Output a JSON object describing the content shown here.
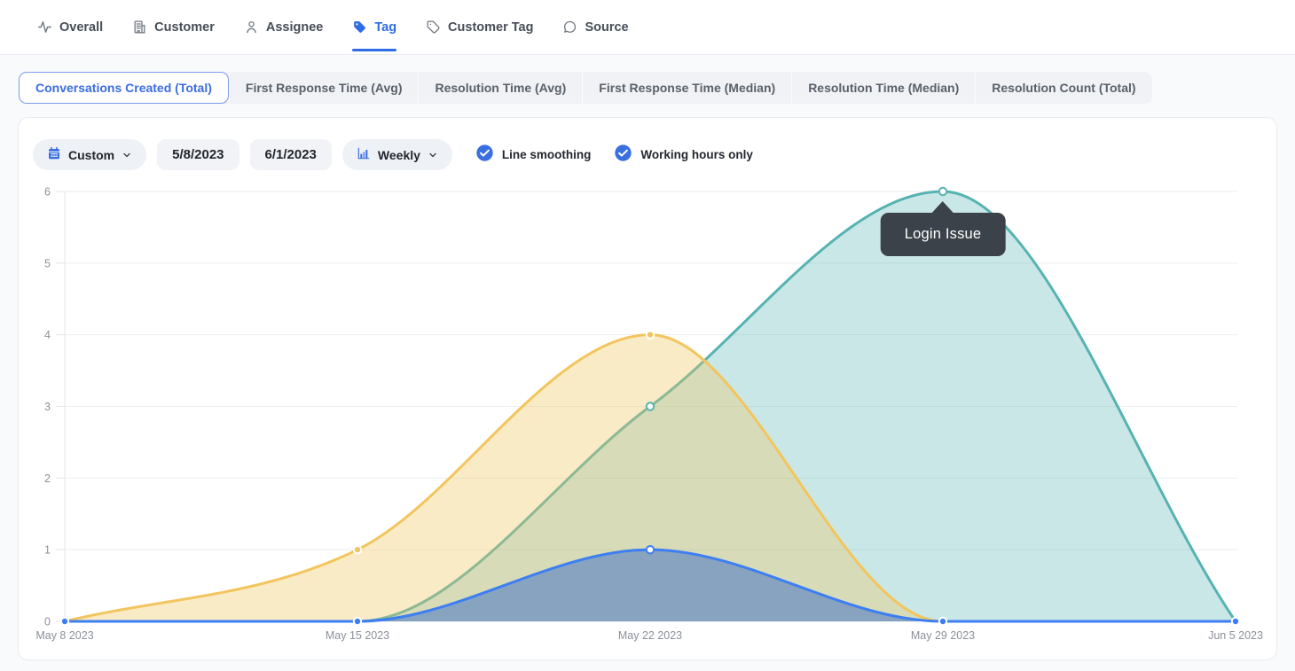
{
  "nav": {
    "items": [
      {
        "label": "Overall",
        "icon": "activity-icon"
      },
      {
        "label": "Customer",
        "icon": "building-icon"
      },
      {
        "label": "Assignee",
        "icon": "person-icon"
      },
      {
        "label": "Tag",
        "icon": "tag-icon"
      },
      {
        "label": "Customer Tag",
        "icon": "tag-outline-icon"
      },
      {
        "label": "Source",
        "icon": "chat-bubble-icon"
      }
    ],
    "active_index": 3
  },
  "metric_tabs": {
    "items": [
      {
        "label": "Conversations Created (Total)"
      },
      {
        "label": "First Response Time (Avg)"
      },
      {
        "label": "Resolution Time (Avg)"
      },
      {
        "label": "First Response Time (Median)"
      },
      {
        "label": "Resolution Time (Median)"
      },
      {
        "label": "Resolution Count (Total)"
      }
    ],
    "active_index": 0
  },
  "controls": {
    "range_preset": "Custom",
    "date_from": "5/8/2023",
    "date_to": "6/1/2023",
    "granularity": "Weekly",
    "toggles": [
      {
        "label": "Line smoothing",
        "checked": true
      },
      {
        "label": "Working hours only",
        "checked": true
      }
    ]
  },
  "colors": {
    "accent": "#2e6be6",
    "active_tab_border": "#7b9ce8",
    "tooltip_bg": "#3c424a",
    "grid": "#eceef1",
    "axis_line": "#e2e5e9",
    "axis_text": "#8b9099"
  },
  "chart_data": {
    "type": "area",
    "title": "",
    "smoothing": true,
    "grid": true,
    "legend_position": "none",
    "x_labels": [
      "May 8 2023",
      "May 15 2023",
      "May 22 2023",
      "May 29 2023",
      "Jun 5 2023"
    ],
    "y_ticks": [
      0,
      1,
      2,
      3,
      4,
      5,
      6
    ],
    "ylim": [
      0,
      6
    ],
    "series": [
      {
        "name": "Login Issue",
        "color": "#56b3b1",
        "fill": "rgba(86,179,177,0.32)",
        "values": [
          0,
          0,
          3,
          6,
          0
        ],
        "dots": [
          2,
          3
        ],
        "hollow": [
          2,
          3
        ]
      },
      {
        "name": "",
        "color": "#f2c55e",
        "fill": "rgba(242,197,94,0.35)",
        "values": [
          0,
          1,
          4,
          0,
          0
        ],
        "dots": [
          1,
          2
        ],
        "hollow": []
      },
      {
        "name": "",
        "color": "#3d7ff2",
        "fill": "rgba(61,112,200,0.52)",
        "values": [
          0,
          0,
          1,
          0,
          0
        ],
        "dots": [
          0,
          1,
          2,
          3,
          4
        ],
        "hollow": [
          2
        ]
      }
    ],
    "tooltip": {
      "label": "Login Issue",
      "series": 0,
      "point": 3
    }
  }
}
